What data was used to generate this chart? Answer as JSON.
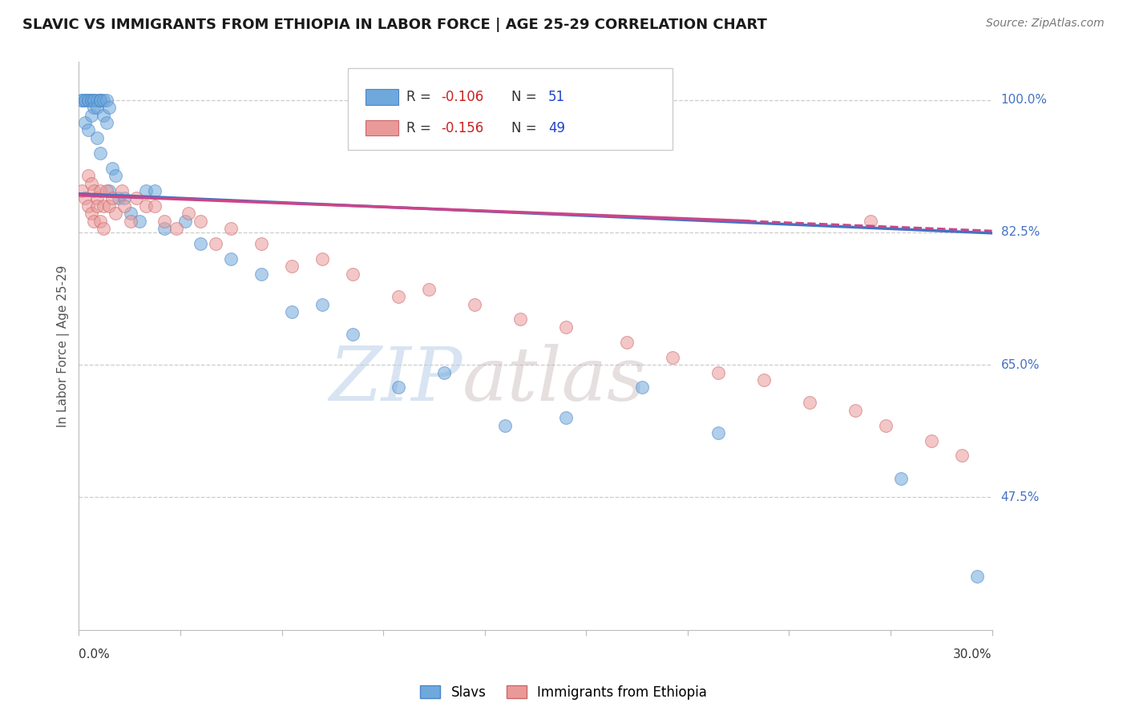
{
  "title": "SLAVIC VS IMMIGRANTS FROM ETHIOPIA IN LABOR FORCE | AGE 25-29 CORRELATION CHART",
  "source": "Source: ZipAtlas.com",
  "ylabel": "In Labor Force | Age 25-29",
  "xmin": 0.0,
  "xmax": 0.3,
  "ymin": 0.3,
  "ymax": 1.05,
  "color_slavs": "#6fa8dc",
  "color_slavs_edge": "#4a86c8",
  "color_ethiopia": "#ea9999",
  "color_ethiopia_edge": "#cc6666",
  "color_line_slavs": "#4472c4",
  "color_line_ethiopia": "#cc4488",
  "legend_r_slavs": "-0.106",
  "legend_n_slavs": "51",
  "legend_r_ethiopia": "-0.156",
  "legend_n_ethiopia": "49",
  "watermark_zip": "ZIP",
  "watermark_atlas": "atlas",
  "ytick_vals": [
    1.0,
    0.825,
    0.65,
    0.475
  ],
  "ytick_labels": [
    "100.0%",
    "82.5%",
    "65.0%",
    "47.5%"
  ],
  "slavs_x": [
    0.001,
    0.001,
    0.002,
    0.002,
    0.002,
    0.003,
    0.003,
    0.003,
    0.004,
    0.004,
    0.004,
    0.005,
    0.005,
    0.005,
    0.006,
    0.006,
    0.006,
    0.007,
    0.007,
    0.007,
    0.007,
    0.008,
    0.008,
    0.009,
    0.009,
    0.01,
    0.01,
    0.011,
    0.012,
    0.013,
    0.015,
    0.017,
    0.02,
    0.022,
    0.025,
    0.028,
    0.035,
    0.04,
    0.05,
    0.06,
    0.07,
    0.08,
    0.09,
    0.105,
    0.12,
    0.14,
    0.16,
    0.185,
    0.21,
    0.27,
    0.295
  ],
  "slavs_y": [
    1.0,
    1.0,
    1.0,
    1.0,
    0.97,
    1.0,
    1.0,
    0.96,
    1.0,
    1.0,
    0.98,
    1.0,
    1.0,
    0.99,
    1.0,
    0.99,
    0.95,
    1.0,
    1.0,
    1.0,
    0.93,
    1.0,
    0.98,
    1.0,
    0.97,
    0.99,
    0.88,
    0.91,
    0.9,
    0.87,
    0.87,
    0.85,
    0.84,
    0.88,
    0.88,
    0.83,
    0.84,
    0.81,
    0.79,
    0.77,
    0.72,
    0.73,
    0.69,
    0.62,
    0.64,
    0.57,
    0.58,
    0.62,
    0.56,
    0.5,
    0.37
  ],
  "ethiopia_x": [
    0.001,
    0.002,
    0.003,
    0.003,
    0.004,
    0.004,
    0.005,
    0.005,
    0.006,
    0.006,
    0.007,
    0.007,
    0.008,
    0.008,
    0.009,
    0.01,
    0.011,
    0.012,
    0.014,
    0.015,
    0.017,
    0.019,
    0.022,
    0.025,
    0.028,
    0.032,
    0.036,
    0.04,
    0.045,
    0.05,
    0.06,
    0.07,
    0.08,
    0.09,
    0.105,
    0.115,
    0.13,
    0.145,
    0.16,
    0.18,
    0.195,
    0.21,
    0.225,
    0.24,
    0.255,
    0.265,
    0.28,
    0.29,
    0.26
  ],
  "ethiopia_y": [
    0.88,
    0.87,
    0.9,
    0.86,
    0.89,
    0.85,
    0.88,
    0.84,
    0.87,
    0.86,
    0.88,
    0.84,
    0.86,
    0.83,
    0.88,
    0.86,
    0.87,
    0.85,
    0.88,
    0.86,
    0.84,
    0.87,
    0.86,
    0.86,
    0.84,
    0.83,
    0.85,
    0.84,
    0.81,
    0.83,
    0.81,
    0.78,
    0.79,
    0.77,
    0.74,
    0.75,
    0.73,
    0.71,
    0.7,
    0.68,
    0.66,
    0.64,
    0.63,
    0.6,
    0.59,
    0.57,
    0.55,
    0.53,
    0.84
  ],
  "line_slavs_x0": 0.0,
  "line_slavs_y0": 0.876,
  "line_slavs_x1": 0.3,
  "line_slavs_y1": 0.824,
  "line_ethiopia_x0": 0.0,
  "line_ethiopia_y0": 0.874,
  "line_ethiopia_x1_solid": 0.22,
  "line_ethiopia_y1_solid": 0.84,
  "line_ethiopia_x1_dash": 0.3,
  "line_ethiopia_y1_dash": 0.827
}
